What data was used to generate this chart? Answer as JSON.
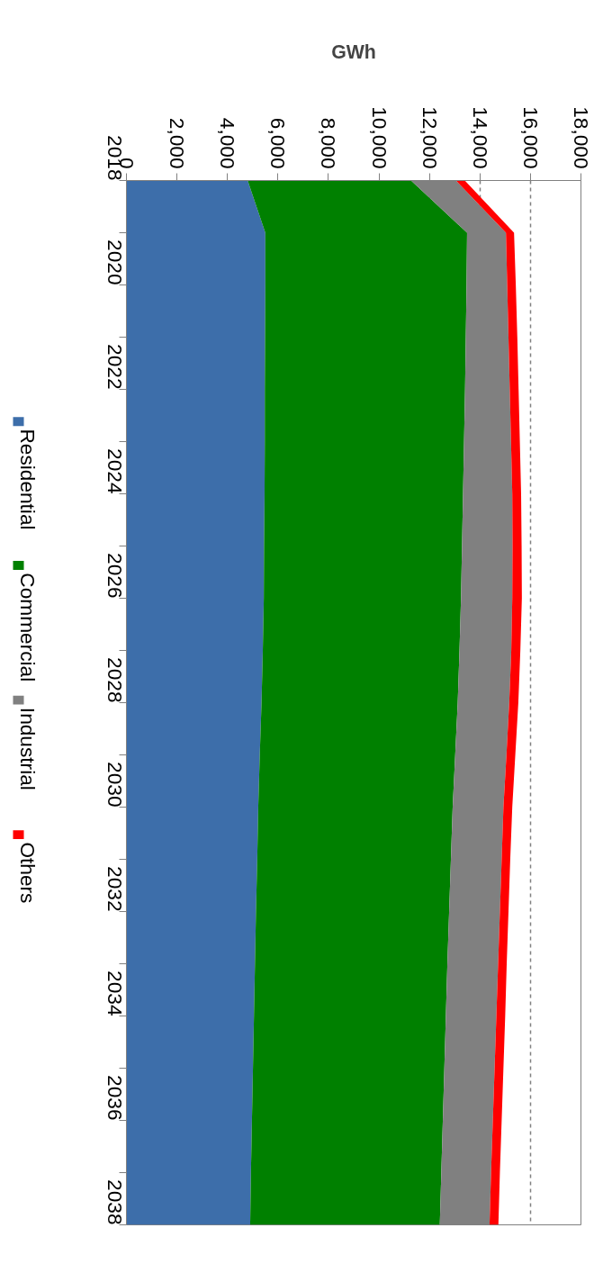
{
  "chart_data": {
    "type": "area",
    "stacked": true,
    "orientation": "horizontal",
    "xlabel": "GWh",
    "x": [
      2018,
      2019,
      2020,
      2021,
      2022,
      2023,
      2024,
      2025,
      2026,
      2027,
      2028,
      2029,
      2030,
      2031,
      2032,
      2033,
      2034,
      2035,
      2036,
      2037,
      2038
    ],
    "series": [
      {
        "name": "Residential",
        "color": "#3d6eaa",
        "values": [
          4800,
          5500,
          5500,
          5490,
          5480,
          5480,
          5470,
          5450,
          5440,
          5400,
          5350,
          5280,
          5220,
          5180,
          5130,
          5090,
          5050,
          5010,
          4970,
          4930,
          4900
        ]
      },
      {
        "name": "Commercial",
        "color": "#008000",
        "values": [
          6470,
          7990,
          7970,
          7950,
          7930,
          7890,
          7860,
          7840,
          7810,
          7790,
          7770,
          7740,
          7700,
          7670,
          7650,
          7620,
          7600,
          7580,
          7560,
          7540,
          7510
        ]
      },
      {
        "name": "Industrial",
        "color": "#808080",
        "values": [
          1780,
          1540,
          1610,
          1690,
          1770,
          1860,
          1950,
          2000,
          2030,
          2050,
          2040,
          2030,
          2010,
          2010,
          2010,
          2010,
          2000,
          1990,
          1980,
          1970,
          1970
        ]
      },
      {
        "name": "Others",
        "color": "#ff0000",
        "values": [
          350,
          320,
          340,
          350,
          350,
          350,
          350,
          360,
          380,
          360,
          360,
          350,
          350,
          340,
          340,
          340,
          350,
          350,
          350,
          350,
          350
        ]
      }
    ],
    "xlim": [
      0,
      18000
    ],
    "xticks": [
      0,
      {
        "value": 2000,
        "label": "2,000"
      },
      {
        "value": 4000,
        "label": "4,000"
      },
      {
        "value": 6000,
        "label": "6,000"
      },
      {
        "value": 8000,
        "label": "8,000"
      },
      {
        "value": 10000,
        "label": "10,000"
      },
      {
        "value": 12000,
        "label": "12,000"
      },
      {
        "value": 14000,
        "label": "14,000"
      },
      {
        "value": 16000,
        "label": "16,000"
      },
      {
        "value": 18000,
        "label": "18,000"
      }
    ],
    "ylim": [
      2038,
      2018
    ],
    "yticks": [
      2018,
      {
        "value": 2019,
        "label": null
      },
      2020,
      {
        "value": 2021,
        "label": null
      },
      2022,
      {
        "value": 2023,
        "label": null
      },
      2024,
      {
        "value": 2025,
        "label": null
      },
      2026,
      {
        "value": 2027,
        "label": null
      },
      2028,
      {
        "value": 2029,
        "label": null
      },
      2030,
      {
        "value": 2031,
        "label": null
      },
      2032,
      {
        "value": 2033,
        "label": null
      },
      2034,
      {
        "value": 2035,
        "label": null
      },
      2036,
      {
        "value": 2037,
        "label": null
      },
      2038
    ],
    "grid": "x",
    "legend": "left"
  }
}
